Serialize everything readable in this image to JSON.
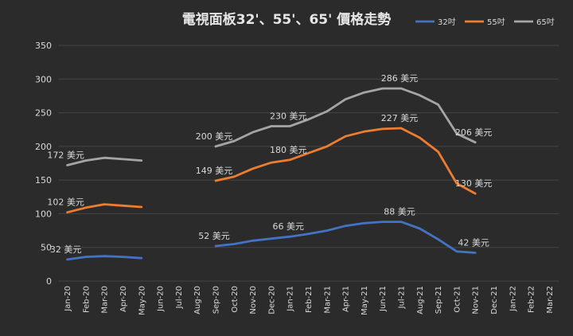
{
  "chart_data": {
    "type": "line",
    "title": "電視面板32'、55'、65' 價格走勢",
    "xlabel": "",
    "ylabel": "",
    "ylim": [
      0,
      350
    ],
    "yticks": [
      0,
      50,
      100,
      150,
      200,
      250,
      300,
      350
    ],
    "grid": true,
    "legend": "top-right",
    "categories": [
      "Jan-20",
      "Feb-20",
      "Mar-20",
      "Apr-20",
      "May-20",
      "Jun-20",
      "Jul-20",
      "Aug-20",
      "Sep-20",
      "Oct-20",
      "Nov-20",
      "Dec-20",
      "Jan-21",
      "Feb-21",
      "Mar-21",
      "Apr-21",
      "May-21",
      "Jun-21",
      "Jul-21",
      "Aug-21",
      "Sep-21",
      "Oct-21",
      "Nov-21",
      "Dec-21",
      "Jan-22",
      "Feb-22",
      "Mar-22"
    ],
    "series": [
      {
        "name": "32吋",
        "color": "#4472c4",
        "values": [
          32,
          36,
          37,
          36,
          34,
          null,
          null,
          null,
          52,
          55,
          60,
          63,
          66,
          70,
          75,
          82,
          86,
          88,
          88,
          78,
          62,
          44,
          42,
          null,
          null,
          null,
          null
        ]
      },
      {
        "name": "55吋",
        "color": "#ed7d31",
        "values": [
          102,
          109,
          114,
          112,
          110,
          null,
          null,
          null,
          149,
          155,
          167,
          176,
          180,
          190,
          200,
          215,
          222,
          226,
          227,
          213,
          192,
          145,
          130,
          null,
          null,
          null,
          null
        ]
      },
      {
        "name": "65吋",
        "color": "#a5a5a5",
        "values": [
          172,
          179,
          183,
          181,
          179,
          null,
          null,
          null,
          200,
          208,
          221,
          230,
          230,
          240,
          252,
          270,
          280,
          286,
          286,
          276,
          262,
          219,
          206,
          null,
          null,
          null,
          null
        ]
      }
    ],
    "data_labels": [
      {
        "series": 0,
        "index": 0,
        "text": "32 美元"
      },
      {
        "series": 0,
        "index": 8,
        "text": "52 美元"
      },
      {
        "series": 0,
        "index": 12,
        "text": "66 美元"
      },
      {
        "series": 0,
        "index": 18,
        "text": "88 美元"
      },
      {
        "series": 0,
        "index": 22,
        "text": "42 美元"
      },
      {
        "series": 1,
        "index": 0,
        "text": "102 美元"
      },
      {
        "series": 1,
        "index": 8,
        "text": "149 美元"
      },
      {
        "series": 1,
        "index": 12,
        "text": "180 美元"
      },
      {
        "series": 1,
        "index": 18,
        "text": "227 美元"
      },
      {
        "series": 1,
        "index": 22,
        "text": "130 美元"
      },
      {
        "series": 2,
        "index": 0,
        "text": "172 美元"
      },
      {
        "series": 2,
        "index": 8,
        "text": "200 美元"
      },
      {
        "series": 2,
        "index": 12,
        "text": "230 美元"
      },
      {
        "series": 2,
        "index": 18,
        "text": "286 美元"
      },
      {
        "series": 2,
        "index": 22,
        "text": "206 美元"
      }
    ],
    "colors": {
      "background": "#2b2b2b",
      "grid": "#454545",
      "text": "#d9d9d9",
      "title": "#e6e6e6"
    }
  }
}
